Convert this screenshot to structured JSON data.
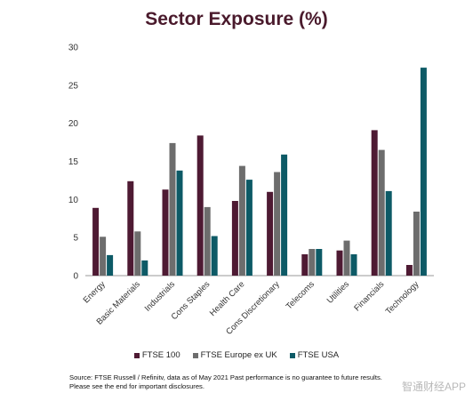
{
  "chart_data": {
    "type": "bar",
    "title": "Sector Exposure (%)",
    "xlabel": "",
    "ylabel": "",
    "ylim": [
      0,
      30
    ],
    "yticks": [
      0,
      5,
      10,
      15,
      20,
      25,
      30
    ],
    "grid": false,
    "legend_position": "bottom",
    "categories": [
      "Energy",
      "Basic Materials",
      "Industrials",
      "Cons Staples",
      "Health Care",
      "Cons Discretionary",
      "Telecoms",
      "Utilities",
      "Financials",
      "Technology"
    ],
    "series": [
      {
        "name": "FTSE 100",
        "color": "#4e1a33",
        "values": [
          8.9,
          12.4,
          11.3,
          18.4,
          9.8,
          11.0,
          2.8,
          3.3,
          19.1,
          1.4
        ]
      },
      {
        "name": "FTSE Europe ex UK",
        "color": "#6d6d6d",
        "values": [
          5.1,
          5.8,
          17.4,
          9.0,
          14.4,
          13.6,
          3.5,
          4.6,
          16.5,
          8.4
        ]
      },
      {
        "name": "FTSE USA",
        "color": "#0d5a66",
        "values": [
          2.7,
          2.0,
          13.8,
          5.2,
          12.6,
          15.9,
          3.5,
          2.8,
          11.1,
          27.3
        ]
      }
    ]
  },
  "source_lines": [
    "Source: FTSE Russell / Refinitv, data as of May 2021 Past performance is no guarantee to future results.",
    "Please see the end for important disclosures."
  ],
  "watermark": "智通财经APP"
}
